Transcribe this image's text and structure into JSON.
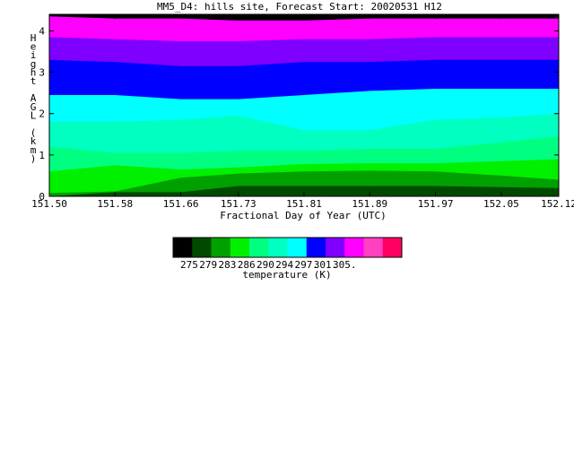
{
  "chart_data": {
    "type": "area",
    "title": "MM5_D4: hills site,  Forecast Start: 20020531 H12",
    "xlabel": "Fractional Day of Year (UTC)",
    "ylabel": "Height AGL (km)",
    "xlim": [
      151.5,
      152.12
    ],
    "ylim": [
      0,
      4.4
    ],
    "xticks": [
      "151.50",
      "151.58",
      "151.66",
      "151.73",
      "151.81",
      "151.89",
      "151.97",
      "152.05",
      "152.12"
    ],
    "yticks": [
      "0",
      "1",
      "2",
      "3",
      "4"
    ],
    "x": [
      151.5,
      151.58,
      151.66,
      151.73,
      151.81,
      151.89,
      151.97,
      152.05,
      152.12
    ],
    "contour_boundaries_km": [
      {
        "level": "305.",
        "values": [
          null,
          0.1,
          0.1,
          0.25,
          0.25,
          0.25,
          0.25,
          0.22,
          0.2
        ]
      },
      {
        "level": "301.",
        "values": [
          0.08,
          0.12,
          0.45,
          0.55,
          0.6,
          0.62,
          0.6,
          0.5,
          0.4
        ]
      },
      {
        "level": "297.",
        "values": [
          0.6,
          0.75,
          0.65,
          0.7,
          0.78,
          0.8,
          0.8,
          0.85,
          0.9
        ]
      },
      {
        "level": "294.",
        "values": [
          1.2,
          1.05,
          1.05,
          1.1,
          1.1,
          1.15,
          1.15,
          1.3,
          1.45
        ]
      },
      {
        "level": "290.",
        "values": [
          1.8,
          1.8,
          1.85,
          1.95,
          1.6,
          1.6,
          1.85,
          1.9,
          2.0
        ]
      },
      {
        "level": "286.",
        "values": [
          2.45,
          2.45,
          2.35,
          2.35,
          2.45,
          2.55,
          2.6,
          2.6,
          2.6
        ]
      },
      {
        "level": "283.",
        "values": [
          3.3,
          3.25,
          3.15,
          3.15,
          3.25,
          3.25,
          3.3,
          3.3,
          3.3
        ]
      },
      {
        "level": "279.",
        "values": [
          3.85,
          3.8,
          3.75,
          3.75,
          3.8,
          3.8,
          3.85,
          3.85,
          3.85
        ]
      },
      {
        "level": "275.",
        "values": [
          4.35,
          4.3,
          4.3,
          4.25,
          4.25,
          4.3,
          4.3,
          4.3,
          4.3
        ]
      }
    ],
    "colorbar": {
      "label": "temperature (K)",
      "ticks": [
        "275.",
        "279.",
        "283.",
        "286.",
        "290.",
        "294.",
        "297.",
        "301.",
        "305."
      ],
      "colors": [
        "#000000",
        "#004a00",
        "#00a000",
        "#00f000",
        "#00ff80",
        "#00ffc0",
        "#00ffff",
        "#0000ff",
        "#8000ff",
        "#ff00ff",
        "#ff40c0",
        "#ff0060"
      ]
    },
    "band_colors": [
      "#004a00",
      "#00a000",
      "#00f000",
      "#00ff80",
      "#00ffc0",
      "#00ffff",
      "#0000ff",
      "#8000ff",
      "#ff00ff",
      "#ff40c0"
    ],
    "top_color": "#000000"
  }
}
